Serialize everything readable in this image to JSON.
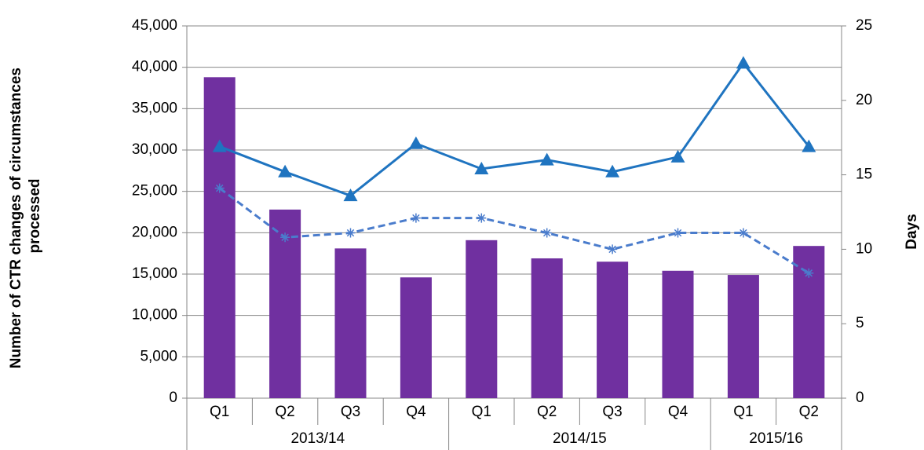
{
  "chart_data": {
    "type": "bar",
    "ylabel": [
      "Number of CTR changes of circumstances",
      "processed"
    ],
    "y2label": "Days",
    "groups": [
      {
        "label": "2013/14",
        "categories": [
          "Q1",
          "Q2",
          "Q3",
          "Q4"
        ]
      },
      {
        "label": "2014/15",
        "categories": [
          "Q1",
          "Q2",
          "Q3",
          "Q4"
        ]
      },
      {
        "label": "2015/16",
        "categories": [
          "Q1",
          "Q2"
        ]
      }
    ],
    "series": [
      {
        "type": "bar",
        "color": "#7030a0",
        "values": [
          38800,
          22800,
          18100,
          14600,
          19100,
          16900,
          16500,
          15400,
          14900,
          18400
        ]
      },
      {
        "type": "line",
        "axis": "y2",
        "color": "#1f74c0",
        "marker": "triangle",
        "dash": "solid",
        "values": [
          16.9,
          15.2,
          13.6,
          17.1,
          15.4,
          16.0,
          15.2,
          16.2,
          22.5,
          16.9
        ]
      },
      {
        "type": "line",
        "axis": "y2",
        "color": "#4a7ccc",
        "marker": "asterisk",
        "dash": "dashed",
        "values": [
          14.1,
          10.8,
          11.1,
          12.1,
          12.1,
          11.1,
          10.0,
          11.1,
          11.1,
          8.4
        ]
      }
    ],
    "ylim": [
      0,
      45000
    ],
    "yticks": [
      0,
      {
        "value": 5000,
        "label": "5,000"
      },
      {
        "value": 10000,
        "label": "10,000"
      },
      {
        "value": 15000,
        "label": "15,000"
      },
      {
        "value": 20000,
        "label": "20,000"
      },
      {
        "value": 25000,
        "label": "25,000"
      },
      {
        "value": 30000,
        "label": "30,000"
      },
      {
        "value": 35000,
        "label": "35,000"
      },
      {
        "value": 40000,
        "label": "40,000"
      },
      {
        "value": 45000,
        "label": "45,000"
      }
    ],
    "y2lim": [
      0,
      25
    ],
    "y2ticks": [
      0,
      5,
      10,
      15,
      20,
      25
    ],
    "grid": true
  }
}
